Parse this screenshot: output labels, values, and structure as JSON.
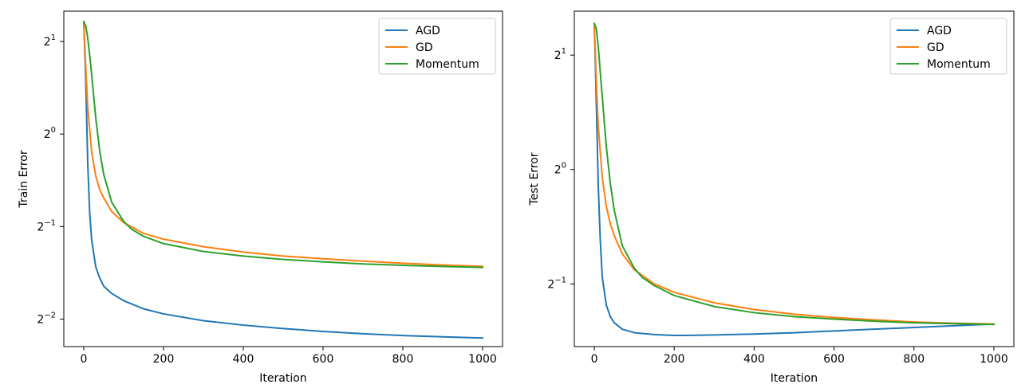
{
  "chart_data": [
    {
      "type": "line",
      "title": "",
      "xlabel": "Iteration",
      "ylabel": "Train Error",
      "yscale": "log2",
      "xlim": [
        -50,
        1050
      ],
      "ylim": [
        0.2035,
        2.51
      ],
      "grid": false,
      "legend_position": "top-right",
      "xticks": [
        0,
        200,
        400,
        600,
        800,
        1000
      ],
      "xtick_labels": [
        "0",
        "200",
        "400",
        "600",
        "800",
        "1000"
      ],
      "yticks": [
        2,
        1,
        0.5,
        0.25
      ],
      "ytick_exponents": [
        "1",
        "0",
        "−1",
        "−2"
      ],
      "ytick_base": "2",
      "series": [
        {
          "name": "AGD",
          "color": "#1f77b4",
          "x": [
            0,
            5,
            10,
            15,
            20,
            30,
            40,
            50,
            70,
            100,
            150,
            200,
            300,
            400,
            500,
            600,
            700,
            800,
            900,
            1000
          ],
          "y": [
            2.32,
            1.5,
            0.8,
            0.55,
            0.45,
            0.37,
            0.34,
            0.32,
            0.303,
            0.287,
            0.27,
            0.26,
            0.247,
            0.239,
            0.233,
            0.228,
            0.224,
            0.221,
            0.219,
            0.217
          ]
        },
        {
          "name": "GD",
          "color": "#ff7f0e",
          "x": [
            0,
            5,
            10,
            20,
            30,
            40,
            50,
            70,
            100,
            150,
            200,
            300,
            400,
            500,
            600,
            700,
            800,
            900,
            1000
          ],
          "y": [
            2.32,
            1.65,
            1.22,
            0.87,
            0.73,
            0.66,
            0.62,
            0.56,
            0.515,
            0.475,
            0.455,
            0.43,
            0.413,
            0.401,
            0.393,
            0.386,
            0.38,
            0.375,
            0.371
          ]
        },
        {
          "name": "Momentum",
          "color": "#2ca02c",
          "x": [
            0,
            5,
            10,
            15,
            20,
            30,
            40,
            50,
            70,
            100,
            120,
            150,
            200,
            300,
            400,
            500,
            600,
            700,
            800,
            900,
            1000
          ],
          "y": [
            2.32,
            2.25,
            2.05,
            1.8,
            1.55,
            1.13,
            0.88,
            0.74,
            0.6,
            0.52,
            0.49,
            0.465,
            0.44,
            0.415,
            0.401,
            0.391,
            0.384,
            0.378,
            0.374,
            0.371,
            0.368
          ]
        }
      ]
    },
    {
      "type": "line",
      "title": "",
      "xlabel": "Iteration",
      "ylabel": "Test Error",
      "yscale": "log2",
      "xlim": [
        -50,
        1050
      ],
      "ylim": [
        0.342,
        2.61
      ],
      "grid": false,
      "legend_position": "top-right",
      "xticks": [
        0,
        200,
        400,
        600,
        800,
        1000
      ],
      "xtick_labels": [
        "0",
        "200",
        "400",
        "600",
        "800",
        "1000"
      ],
      "yticks": [
        2,
        1,
        0.5
      ],
      "ytick_exponents": [
        "1",
        "0",
        "−1"
      ],
      "ytick_base": "2",
      "series": [
        {
          "name": "AGD",
          "color": "#1f77b4",
          "x": [
            0,
            5,
            10,
            15,
            20,
            30,
            40,
            50,
            70,
            100,
            150,
            200,
            225,
            300,
            400,
            500,
            600,
            700,
            800,
            900,
            1000
          ],
          "y": [
            2.42,
            1.5,
            0.9,
            0.65,
            0.52,
            0.44,
            0.41,
            0.395,
            0.38,
            0.372,
            0.368,
            0.366,
            0.366,
            0.367,
            0.369,
            0.372,
            0.376,
            0.38,
            0.384,
            0.388,
            0.392
          ]
        },
        {
          "name": "GD",
          "color": "#ff7f0e",
          "x": [
            0,
            5,
            10,
            20,
            30,
            40,
            50,
            70,
            100,
            150,
            200,
            300,
            400,
            500,
            600,
            700,
            800,
            900,
            1000
          ],
          "y": [
            2.42,
            1.7,
            1.3,
            0.95,
            0.8,
            0.72,
            0.67,
            0.6,
            0.545,
            0.5,
            0.475,
            0.446,
            0.428,
            0.416,
            0.408,
            0.402,
            0.397,
            0.394,
            0.392
          ]
        },
        {
          "name": "Momentum",
          "color": "#2ca02c",
          "x": [
            0,
            5,
            10,
            15,
            20,
            30,
            40,
            50,
            70,
            100,
            120,
            150,
            200,
            300,
            400,
            500,
            600,
            700,
            800,
            900,
            1000
          ],
          "y": [
            2.42,
            2.35,
            2.1,
            1.8,
            1.55,
            1.15,
            0.92,
            0.78,
            0.63,
            0.55,
            0.52,
            0.495,
            0.466,
            0.436,
            0.42,
            0.41,
            0.404,
            0.399,
            0.395,
            0.393,
            0.391
          ]
        }
      ]
    }
  ]
}
